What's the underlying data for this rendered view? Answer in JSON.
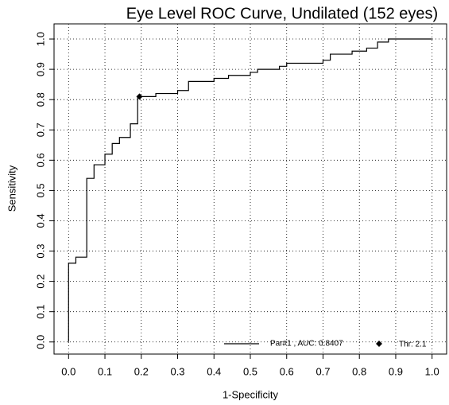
{
  "chart_data": {
    "type": "line",
    "title": "Eye Level ROC Curve, Undilated (152 eyes)",
    "x_label": "1-Specificity",
    "y_label": "Sensitivity",
    "xlim": [
      -0.04,
      1.04
    ],
    "ylim": [
      -0.04,
      1.05
    ],
    "xticks": [
      {
        "value": 0,
        "label": "0.0"
      },
      0.1,
      0.2,
      0.3,
      0.4,
      0.5,
      0.6,
      0.7,
      0.8,
      0.9,
      {
        "value": 1,
        "label": "1.0"
      }
    ],
    "yticks": [
      {
        "value": 0,
        "label": "0.0"
      },
      0.1,
      0.2,
      0.3,
      0.4,
      0.5,
      0.6,
      0.7,
      0.8,
      0.9,
      {
        "value": 1,
        "label": "1.0"
      }
    ],
    "grid": true,
    "legend": "bottomright",
    "series": [
      {
        "name": "Par#1 , AUC: 0.8407",
        "color": "#000000",
        "x": [
          0,
          0,
          0.02,
          0.02,
          0.05,
          0.05,
          0.07,
          0.07,
          0.1,
          0.1,
          0.12,
          0.12,
          0.14,
          0.14,
          0.17,
          0.17,
          0.19,
          0.19,
          0.24,
          0.24,
          0.3,
          0.3,
          0.33,
          0.33,
          0.4,
          0.4,
          0.44,
          0.44,
          0.5,
          0.5,
          0.52,
          0.52,
          0.58,
          0.58,
          0.6,
          0.6,
          0.7,
          0.7,
          0.72,
          0.72,
          0.78,
          0.78,
          0.82,
          0.82,
          0.85,
          0.85,
          0.88,
          0.88,
          1.0
        ],
        "values": [
          0,
          0.26,
          0.26,
          0.28,
          0.28,
          0.54,
          0.54,
          0.585,
          0.585,
          0.62,
          0.62,
          0.655,
          0.655,
          0.675,
          0.675,
          0.72,
          0.72,
          0.81,
          0.81,
          0.82,
          0.82,
          0.83,
          0.83,
          0.86,
          0.86,
          0.87,
          0.87,
          0.88,
          0.88,
          0.89,
          0.89,
          0.9,
          0.9,
          0.91,
          0.91,
          0.92,
          0.92,
          0.93,
          0.93,
          0.95,
          0.95,
          0.96,
          0.96,
          0.97,
          0.97,
          0.99,
          0.99,
          1.0,
          1.0
        ]
      }
    ],
    "threshold": {
      "name": "Thr: 2.1",
      "x": 0.195,
      "y": 0.81,
      "color": "#000000"
    }
  }
}
